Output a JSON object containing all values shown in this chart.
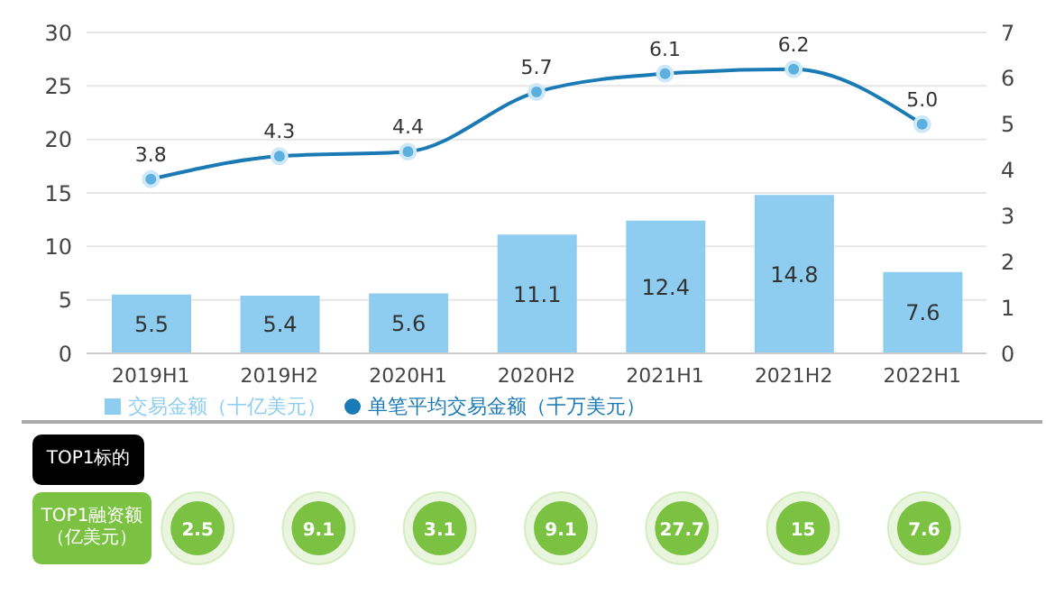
{
  "chart_data": [
    {
      "type": "bar",
      "categories": [
        "2019H1",
        "2019H2",
        "2020H1",
        "2020H2",
        "2021H1",
        "2021H2",
        "2022H1"
      ],
      "series": [
        {
          "name": "交易金额（十亿美元）",
          "type": "bar",
          "color": "#8ecdf0",
          "values": [
            5.5,
            5.4,
            5.6,
            11.1,
            12.4,
            14.8,
            7.6
          ]
        },
        {
          "name": "单笔平均交易金额（千万美元）",
          "type": "line",
          "axis": "y2",
          "color": "#1a7ab5",
          "values": [
            3.8,
            4.3,
            4.4,
            5.7,
            6.1,
            6.2,
            5.0
          ],
          "value_labels": [
            "3.8",
            "4.3",
            "4.4",
            "5.7",
            "6.1",
            "6.2",
            "5.0"
          ]
        }
      ],
      "ylim": [
        0,
        30
      ],
      "yticks": [
        0,
        5,
        10,
        15,
        20,
        25,
        30
      ],
      "y2lim": [
        0,
        7
      ],
      "y2ticks": [
        0,
        1,
        2,
        3,
        4,
        5,
        6,
        7
      ],
      "grid": "y",
      "legend": "bottom",
      "marker": "circle",
      "data_labels": true
    },
    {
      "type": "other",
      "categories": [
        null,
        null,
        null,
        null,
        null,
        null,
        null
      ],
      "values": [
        2.5,
        9.1,
        3.1,
        9.1,
        27.7,
        15,
        7.6
      ],
      "color": "#7cc242",
      "annotations": [
        "TOP1标的",
        "TOP1融资额（亿美元）"
      ],
      "data_labels": true
    }
  ]
}
